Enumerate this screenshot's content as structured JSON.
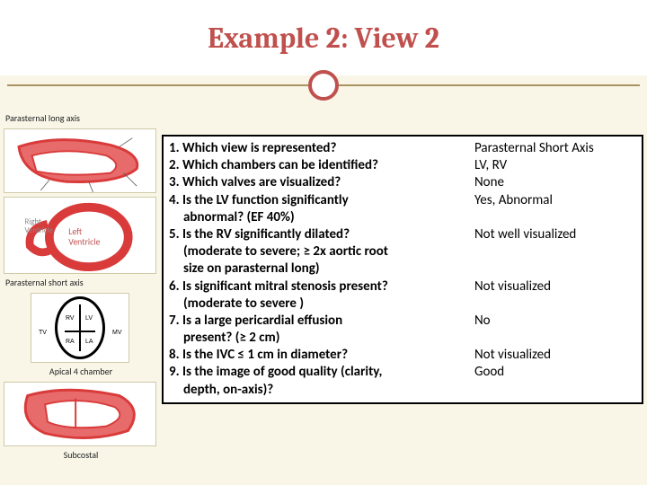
{
  "title": "Example 2: View 2",
  "colors": {
    "accent": "#c0504d",
    "bg": "#f9f6e8",
    "rule": "#a8935e",
    "heart_red": "#d93a3a",
    "heart_red_light": "#e86b6b",
    "border": "#cfcaa8"
  },
  "sidebar": {
    "items": [
      {
        "caption": "Parasternal long axis"
      },
      {
        "caption": "Parasternal short axis"
      },
      {
        "caption": "Apical 4 chamber",
        "labels": {
          "rv": "RV",
          "lv": "LV",
          "ra": "RA",
          "la": "LA",
          "tv": "TV",
          "mv": "MV"
        }
      },
      {
        "caption": "Subcostal"
      }
    ]
  },
  "qa": {
    "rows": [
      {
        "q": "1. Which view is represented?",
        "a": "Parasternal Short Axis"
      },
      {
        "q": "2. Which chambers can be identified?",
        "a": "LV, RV"
      },
      {
        "q": "3. Which valves are visualized?",
        "a": "None"
      },
      {
        "q": "4. Is the LV function significantly",
        "q2": "abnormal? (EF 40%)",
        "a": "Yes, Abnormal"
      },
      {
        "q": "5. Is the RV significantly dilated?",
        "q2": "(moderate to severe; ≥ 2x aortic root",
        "q3": "size on parasternal long)",
        "a": "Not well visualized"
      },
      {
        "q": "6. Is significant mitral stenosis present?",
        "q2": "(moderate to severe )",
        "a": "Not visualized"
      },
      {
        "q": "7. Is a large pericardial effusion",
        "q2": "present? (≥ 2 cm)",
        "a": "No"
      },
      {
        "q": "8. Is the IVC  ≤ 1 cm in diameter?",
        "a": "Not visualized"
      },
      {
        "q": "9. Is the image of good quality (clarity,",
        "q2": "depth, on-axis)?",
        "a": "Good"
      }
    ]
  }
}
